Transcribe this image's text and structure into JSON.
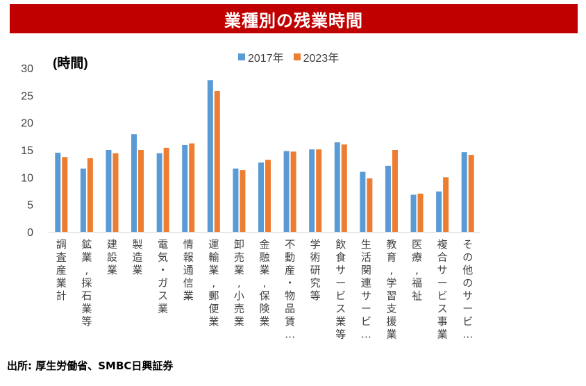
{
  "header": {
    "title": "業種別の残業時間"
  },
  "footer": {
    "source": "出所: 厚生労働省、SMBC日興証券"
  },
  "colors": {
    "title_bg": "#c00000",
    "series_2017": "#5b9bd5",
    "series_2023": "#ed7d31"
  },
  "chart_data": {
    "type": "bar",
    "title": "業種別の残業時間",
    "ylabel": "(時間)",
    "xlabel": "",
    "ylim": [
      0,
      30
    ],
    "yticks": [
      "0",
      "5",
      "10",
      "15",
      "20",
      "25",
      "30"
    ],
    "grid": false,
    "legend": {
      "position": "top-center",
      "entries": [
        "2017年",
        "2023年"
      ]
    },
    "categories": [
      "調査産業計",
      "鉱業,採石業等",
      "建設業",
      "製造業",
      "電気・ガス業",
      "情報通信業",
      "運輸業,郵便業",
      "卸売業,小売業",
      "金融業,保険業",
      "不動産・物品賃…",
      "学術研究等",
      "飲食サービス業等",
      "生活関連サービ…",
      "教育,学習支援業",
      "医療,福祉",
      "複合サービス事業",
      "その他のサービ…"
    ],
    "series": [
      {
        "name": "2017年",
        "values": [
          14.5,
          11.6,
          15.0,
          17.9,
          14.4,
          15.9,
          27.8,
          11.6,
          12.7,
          14.8,
          15.1,
          16.4,
          11.0,
          12.1,
          6.8,
          7.4,
          14.6
        ]
      },
      {
        "name": "2023年",
        "values": [
          13.7,
          13.5,
          14.4,
          15.0,
          15.4,
          16.2,
          25.8,
          11.3,
          13.2,
          14.7,
          15.1,
          16.0,
          9.8,
          15.0,
          7.0,
          10.0,
          14.1
        ]
      }
    ]
  }
}
